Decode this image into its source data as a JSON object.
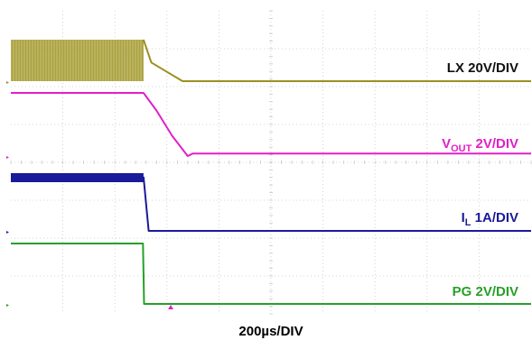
{
  "chart_data": {
    "type": "line",
    "title": "",
    "xlabel": "200µs/DIV",
    "xlim": [
      0,
      2000
    ],
    "grid": true,
    "grid_divisions": {
      "x": 10,
      "y": 8
    },
    "series": [
      {
        "name": "LX 20V/DIV",
        "label_main": "LX 20V/DIV",
        "label_sub": "",
        "label_tail": "",
        "color": "#9b9020",
        "style": "switching-then-flat",
        "x": [
          0,
          510,
          540,
          660,
          2000
        ],
        "y": [
          40,
          40,
          18,
          0,
          0
        ]
      },
      {
        "name": "VOUT 2V/DIV",
        "label_main": "V",
        "label_sub": "OUT",
        "label_tail": " 2V/DIV",
        "color": "#e020c8",
        "style": "line",
        "x": [
          0,
          510,
          560,
          620,
          680,
          700,
          2000
        ],
        "y": [
          5.0,
          5.0,
          3.6,
          1.6,
          0.0,
          0.2,
          0.2
        ]
      },
      {
        "name": "IL 1A/DIV",
        "label_main": "I",
        "label_sub": "L",
        "label_tail": " 1A/DIV",
        "color": "#1a1a9a",
        "style": "ripple-then-flat",
        "x": [
          0,
          510,
          530,
          2000
        ],
        "y": [
          1.2,
          1.2,
          0,
          0
        ]
      },
      {
        "name": "PG 2V/DIV",
        "label_main": "PG 2V/DIV",
        "label_sub": "",
        "label_tail": "",
        "color": "#27a027",
        "style": "line",
        "x": [
          0,
          508,
          512,
          2000
        ],
        "y": [
          5.0,
          5.0,
          0,
          0
        ]
      }
    ]
  }
}
